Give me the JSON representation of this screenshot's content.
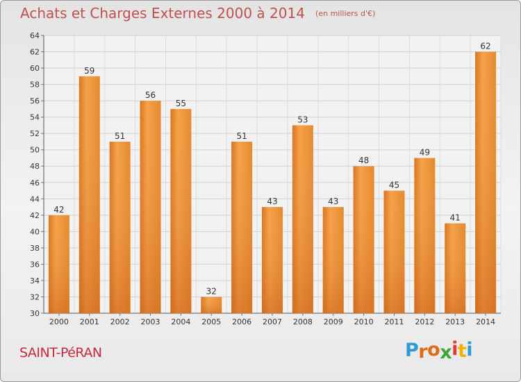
{
  "title": "Achats et Charges Externes 2000 à 2014",
  "unit_note": "(en milliers d'€)",
  "commune": "SAINT-PéRAN",
  "logo": {
    "text": "Proxiti",
    "letter_colors": [
      "#2f9ad6",
      "#e06b1a",
      "#e06b1a",
      "#3aa83a",
      "#e03a3a",
      "#f0b400",
      "#2f9ad6"
    ]
  },
  "chart_data": {
    "type": "bar",
    "categories": [
      "2000",
      "2001",
      "2002",
      "2003",
      "2004",
      "2005",
      "2006",
      "2007",
      "2008",
      "2009",
      "2010",
      "2011",
      "2012",
      "2013",
      "2014"
    ],
    "values": [
      42,
      59,
      51,
      56,
      55,
      32,
      51,
      43,
      53,
      43,
      48,
      45,
      49,
      41,
      62
    ],
    "ylim": [
      30,
      64
    ],
    "yticks": [
      30,
      32,
      34,
      36,
      38,
      40,
      42,
      44,
      46,
      48,
      50,
      52,
      54,
      56,
      58,
      60,
      62,
      64
    ],
    "grid": true,
    "bar_color_top": "#f5a24a",
    "bar_color_bottom": "#d9741f"
  }
}
